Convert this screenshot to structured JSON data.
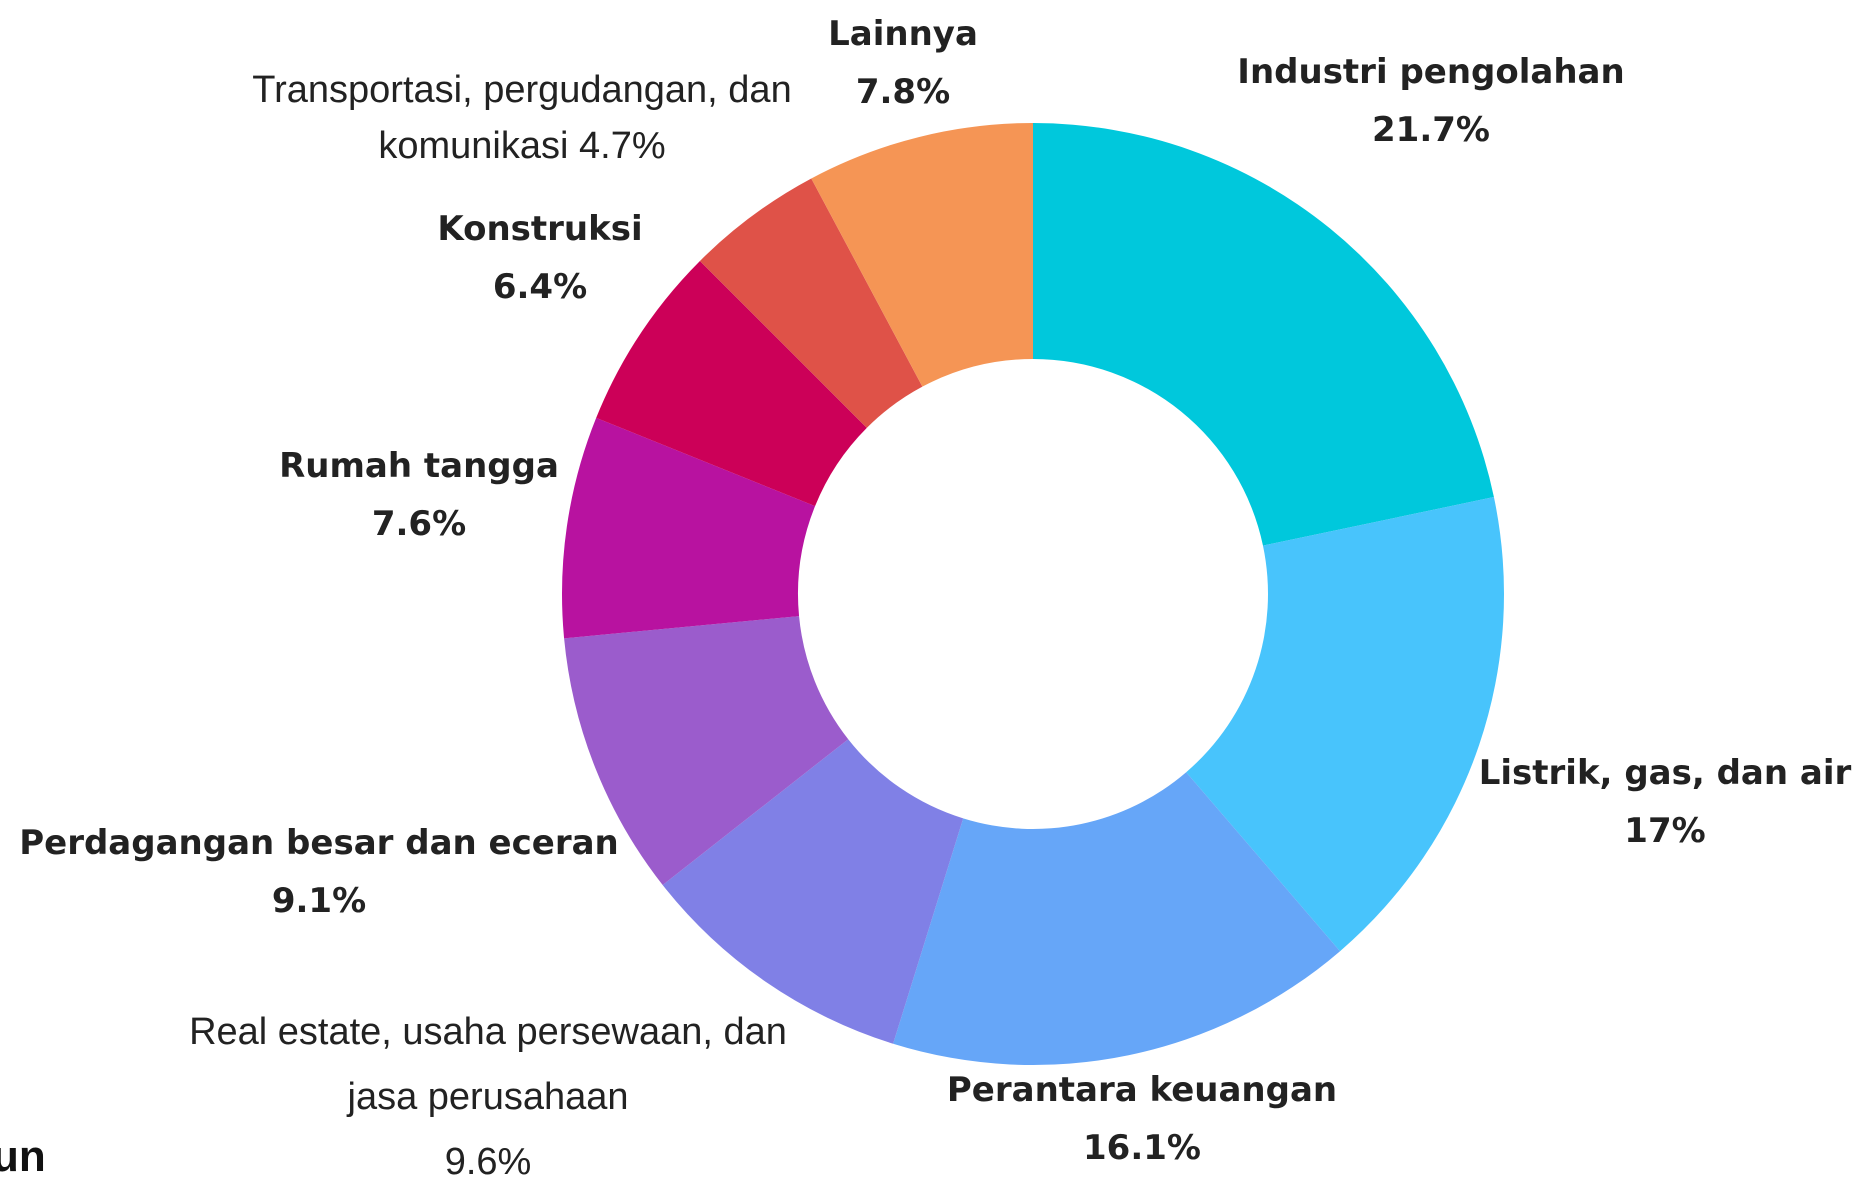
{
  "chart_data": {
    "type": "donut",
    "categories": [
      "Industri pengolahan",
      "Listrik, gas, dan air",
      "Perantara keuangan",
      "Real estate, usaha persewaan, dan jasa perusahaan",
      "Perdagangan besar dan eceran",
      "Rumah tangga",
      "Konstruksi",
      "Transportasi, pergudangan, dan komunikasi",
      "Lainnya"
    ],
    "values": [
      21.7,
      17,
      16.1,
      9.6,
      9.1,
      7.6,
      6.4,
      4.7,
      7.8
    ],
    "value_labels": [
      "21.7%",
      "17%",
      "16.1%",
      "9.6%",
      "9.1%",
      "7.6%",
      "6.4%",
      "4.7%",
      "7.8%"
    ],
    "colors": [
      "#00c8dc",
      "#48c4fc",
      "#66a6f8",
      "#8080e6",
      "#9b5ccc",
      "#b812a0",
      "#cc0058",
      "#df5248",
      "#f59555"
    ]
  },
  "fragment_text": "un"
}
